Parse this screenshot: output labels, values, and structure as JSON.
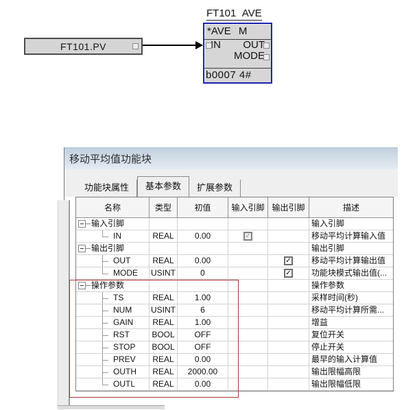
{
  "diagram": {
    "instance_title": "FT101 AVE",
    "input_box_label": "FT101.PV",
    "block": {
      "header": "*AVE M",
      "left_pin_label": "IN",
      "right_pin_top_label": "OUT",
      "right_pin_bottom_label": "MODE",
      "footer": "b0007 4#"
    },
    "colors": {
      "block_border": "#1c24ae",
      "block_fill": "#d6d6d6"
    }
  },
  "panel": {
    "title": "移动平均值功能块",
    "tabs": [
      {
        "label": "功能块属性",
        "selected": false
      },
      {
        "label": "基本参数",
        "selected": true
      },
      {
        "label": "扩展参数",
        "selected": false
      }
    ]
  },
  "table": {
    "headers": [
      "名称",
      "类型",
      "初值",
      "输入引脚",
      "输出引脚",
      "描述"
    ],
    "rows": [
      {
        "kind": "group",
        "name": "输入引脚",
        "type": "",
        "value": "",
        "input_pin": null,
        "output_pin": null,
        "desc": "输入引脚"
      },
      {
        "kind": "child",
        "connector": "last",
        "name": "IN",
        "type": "REAL",
        "value": "0.00",
        "input_pin": "checked-disabled",
        "output_pin": null,
        "desc": "移动平均计算输入值"
      },
      {
        "kind": "group",
        "name": "输出引脚",
        "type": "",
        "value": "",
        "input_pin": null,
        "output_pin": null,
        "desc": "输出引脚"
      },
      {
        "kind": "child",
        "connector": "mid",
        "name": "OUT",
        "type": "REAL",
        "value": "0.00",
        "input_pin": null,
        "output_pin": "checked",
        "desc": "移动平均计算输出值"
      },
      {
        "kind": "child",
        "connector": "last",
        "name": "MODE",
        "type": "USINT",
        "value": "0",
        "input_pin": null,
        "output_pin": "checked",
        "desc": "功能块模式输出值(..."
      },
      {
        "kind": "group",
        "name": "操作参数",
        "type": "",
        "value": "",
        "input_pin": null,
        "output_pin": null,
        "desc": "操作参数"
      },
      {
        "kind": "child",
        "connector": "mid",
        "name": "TS",
        "type": "REAL",
        "value": "1.00",
        "input_pin": null,
        "output_pin": null,
        "desc": "采样时间(秒)"
      },
      {
        "kind": "child",
        "connector": "mid",
        "name": "NUM",
        "type": "USINT",
        "value": "6",
        "input_pin": null,
        "output_pin": null,
        "desc": "移动平均计算所需..."
      },
      {
        "kind": "child",
        "connector": "mid",
        "name": "GAIN",
        "type": "REAL",
        "value": "1.00",
        "input_pin": null,
        "output_pin": null,
        "desc": "增益"
      },
      {
        "kind": "child",
        "connector": "mid",
        "name": "RST",
        "type": "BOOL",
        "value": "OFF",
        "input_pin": null,
        "output_pin": null,
        "desc": "复位开关"
      },
      {
        "kind": "child",
        "connector": "mid",
        "name": "STOP",
        "type": "BOOL",
        "value": "OFF",
        "input_pin": null,
        "output_pin": null,
        "desc": "停止开关"
      },
      {
        "kind": "child",
        "connector": "mid",
        "name": "PREV",
        "type": "REAL",
        "value": "0.00",
        "input_pin": null,
        "output_pin": null,
        "desc": "最早的输入计算值"
      },
      {
        "kind": "child",
        "connector": "mid",
        "name": "OUTH",
        "type": "REAL",
        "value": "2000.00",
        "input_pin": null,
        "output_pin": null,
        "desc": "输出限幅高限"
      },
      {
        "kind": "child",
        "connector": "last",
        "name": "OUTL",
        "type": "REAL",
        "value": "0.00",
        "input_pin": null,
        "output_pin": null,
        "desc": "输出限幅低限"
      }
    ],
    "highlight_border_color": "#b13434",
    "check_glyph": "✓"
  }
}
